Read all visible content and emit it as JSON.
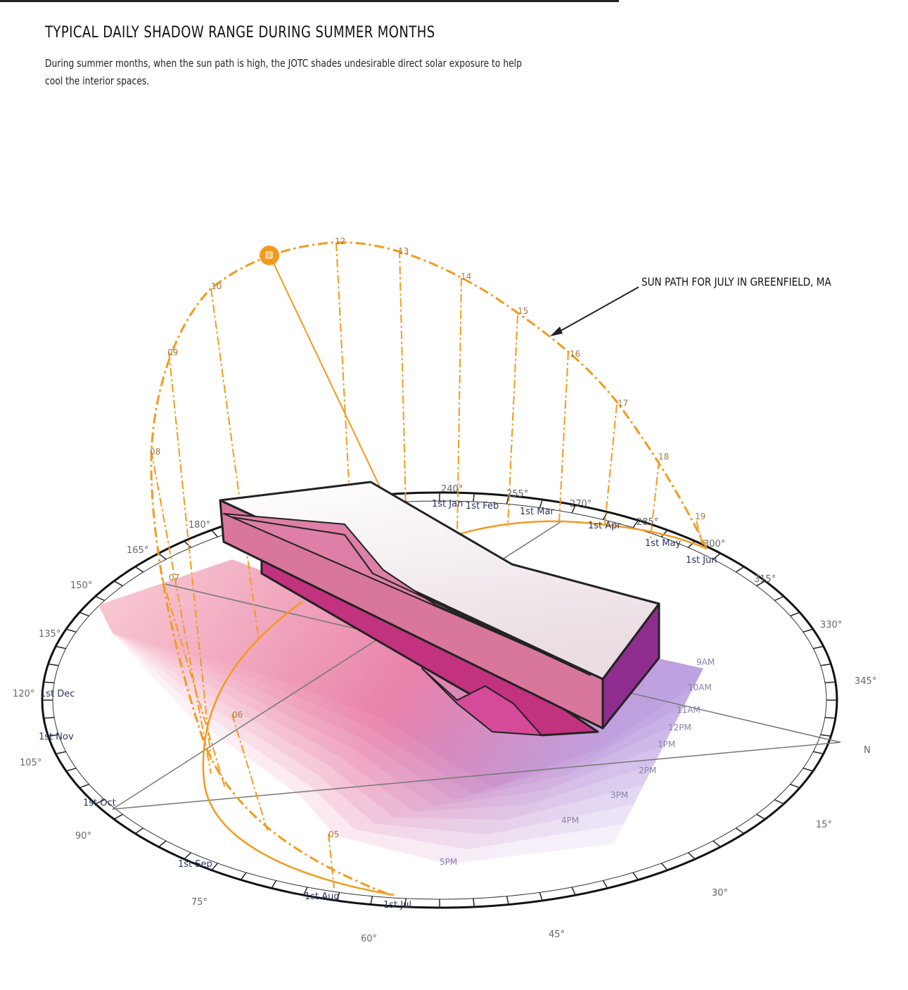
{
  "header": {
    "title": "TYPICAL DAILY SHADOW RANGE DURING SUMMER MONTHS",
    "description": "During summer months, when the sun path is high, the JOTC shades undesirable direct solar exposure to help cool the interior spaces."
  },
  "annotation": "SUN PATH FOR JULY IN GREENFIELD, MA",
  "hour_labels": [
    "05",
    "06",
    "07",
    "08",
    "09",
    "10",
    "12",
    "13",
    "14",
    "15",
    "16",
    "17",
    "18",
    "19"
  ],
  "compass_labels": [
    "240°",
    "255°",
    "270°",
    "285°",
    "300°",
    "315°",
    "330°",
    "345°",
    "N",
    "15°",
    "30°",
    "45°",
    "60°",
    "75°",
    "90°",
    "105°",
    "120°",
    "135°",
    "150°",
    "165°",
    "180°"
  ],
  "month_labels": [
    "1st Jan",
    "1st Feb",
    "1st Mar",
    "1st Apr",
    "1st May",
    "1st Jun",
    "1st Jul",
    "1st Aug",
    "1st Sep",
    "1st Oct",
    "1st Nov",
    "1st Dec"
  ],
  "shadow_labels": [
    "9AM",
    "10AM",
    "11AM",
    "12PM",
    "1PM",
    "2PM",
    "3PM",
    "4PM",
    "5PM"
  ]
}
